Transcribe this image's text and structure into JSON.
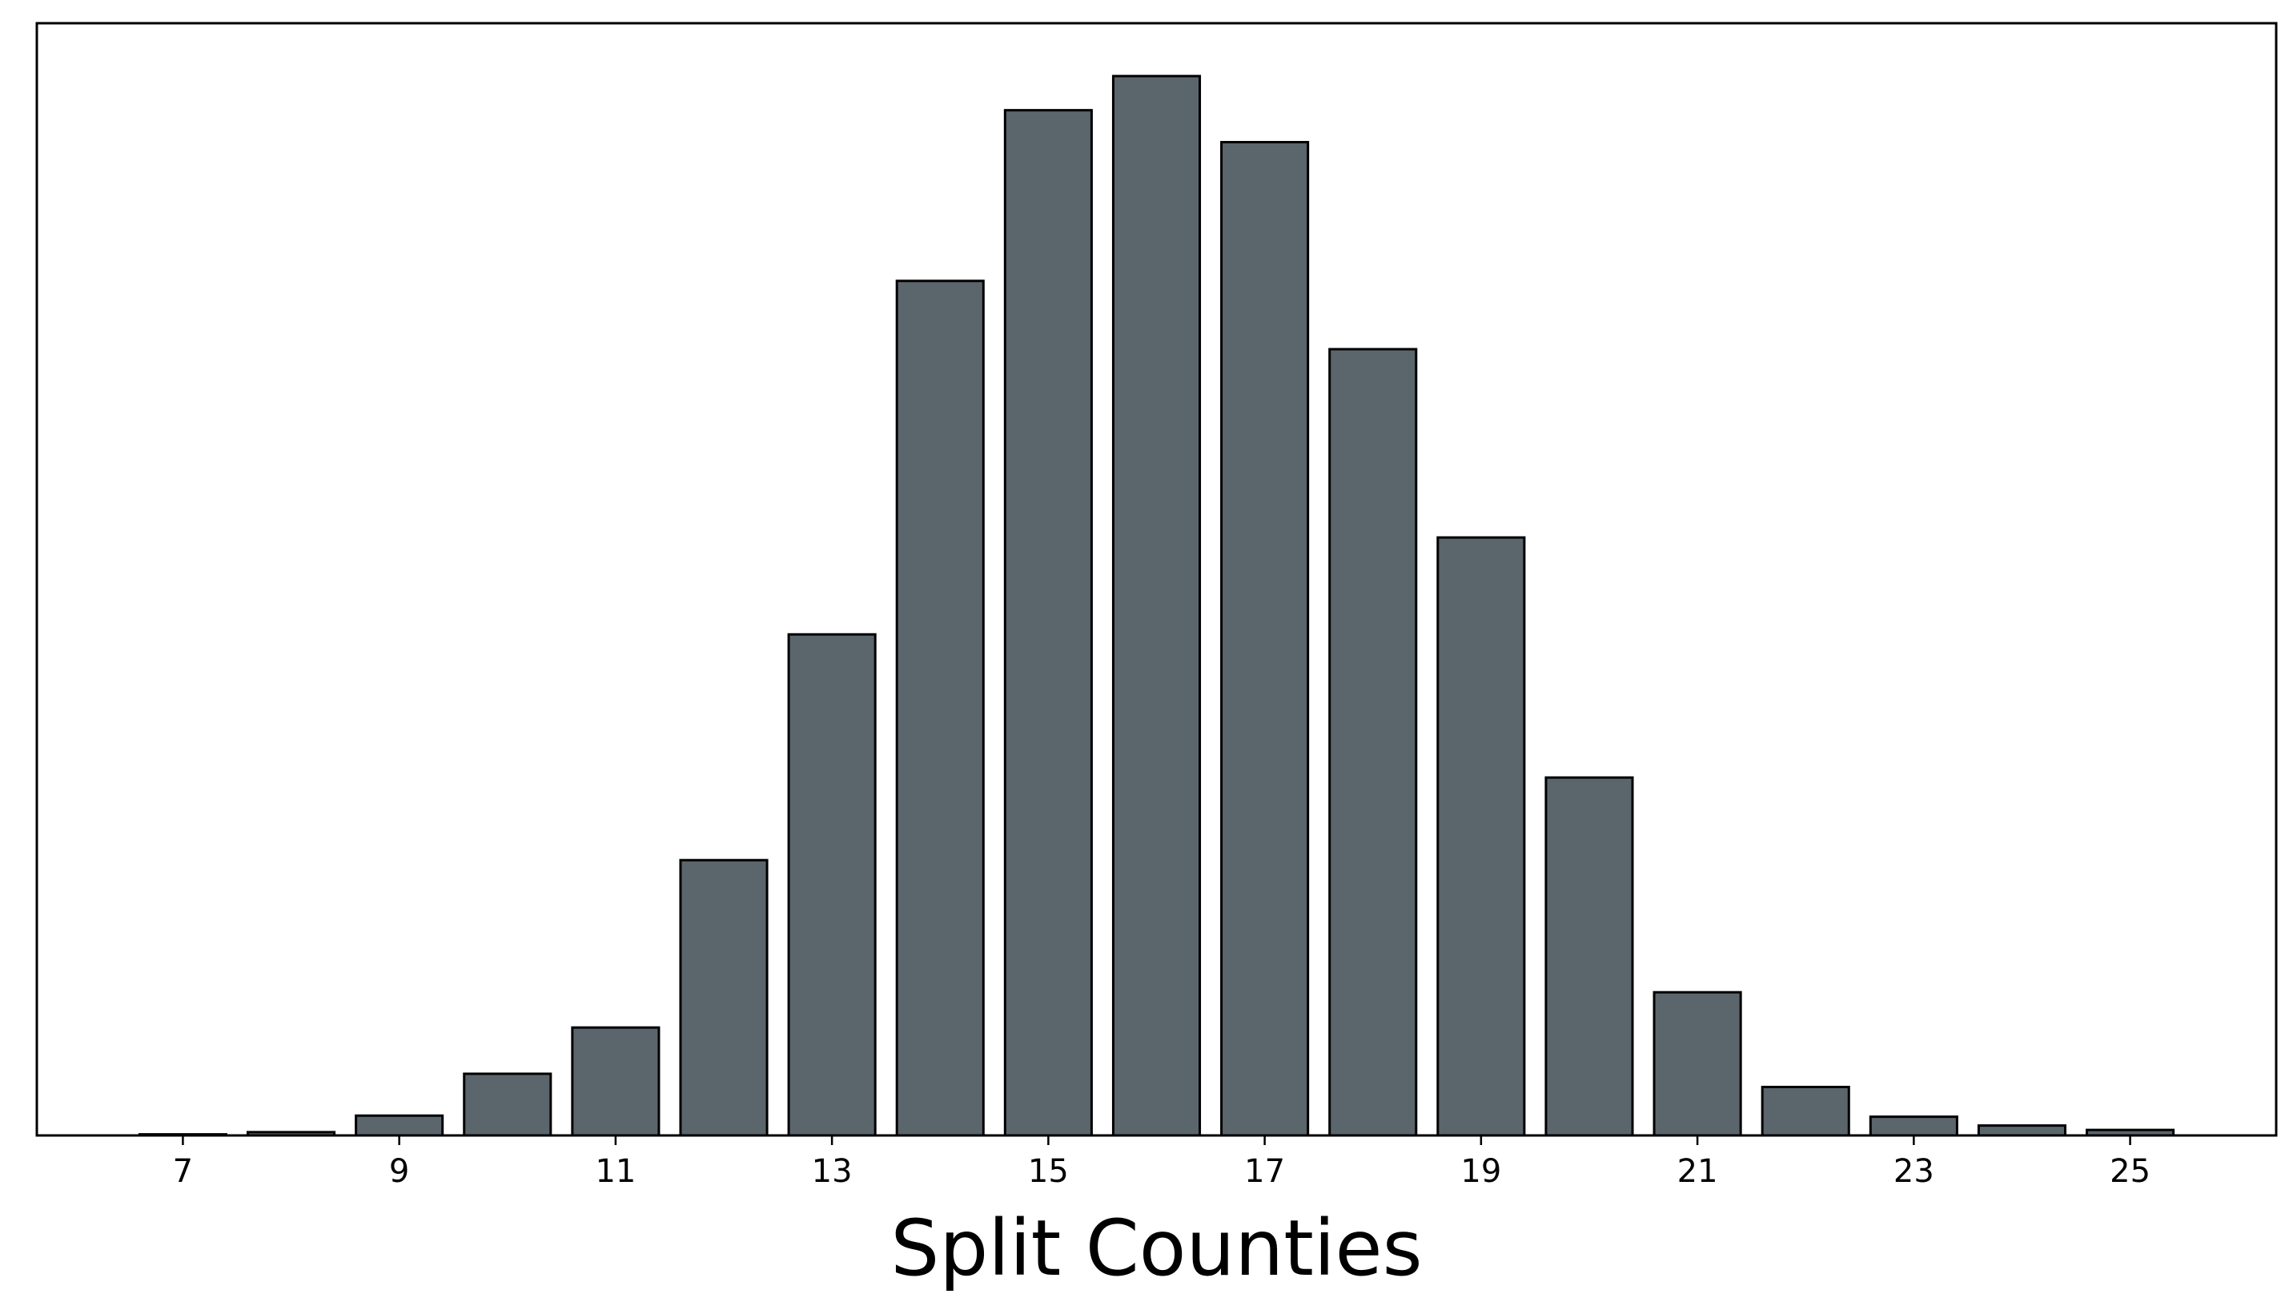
{
  "chart_data": {
    "type": "bar",
    "title": "",
    "xlabel": "Split Counties",
    "ylabel": "",
    "x": [
      7,
      8,
      9,
      10,
      11,
      12,
      13,
      14,
      15,
      16,
      17,
      18,
      19,
      20,
      21,
      22,
      23,
      24,
      25
    ],
    "values": [
      0.1,
      0.3,
      1.8,
      5.6,
      9.8,
      25.0,
      45.5,
      77.6,
      93.1,
      96.2,
      90.2,
      71.4,
      54.3,
      32.5,
      13.0,
      4.4,
      1.7,
      0.9,
      0.5
    ],
    "xticks": [
      7,
      9,
      11,
      13,
      15,
      17,
      19,
      21,
      23,
      25
    ],
    "xlim": [
      5.65,
      26.35
    ],
    "ylim": [
      0,
      101
    ],
    "yticks_visible": false,
    "grid": false,
    "legend": "none",
    "bar_color": "#5b656c",
    "edge_color": "#000000"
  }
}
